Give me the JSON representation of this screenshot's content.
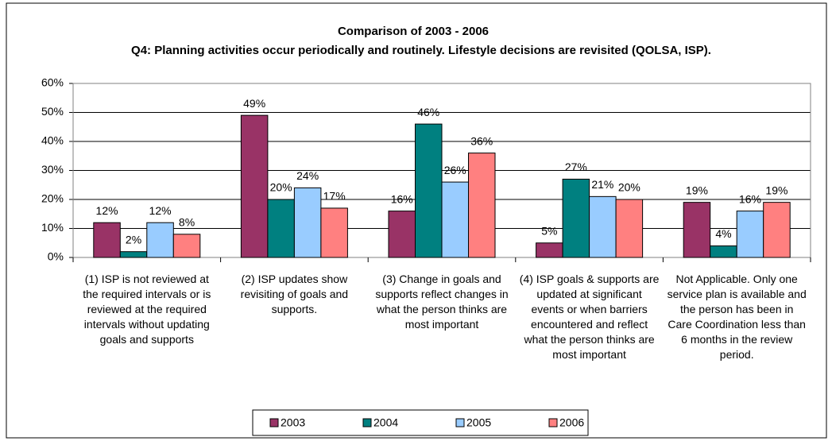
{
  "chart_data": {
    "type": "bar",
    "title": "Comparison of 2003 - 2006",
    "subtitle": "Q4: Planning activities occur periodically and routinely.  Lifestyle decisions are revisited (QOLSA, ISP).",
    "categories": [
      "(1) ISP is not reviewed at the required intervals or is reviewed at the required intervals without updating goals and supports",
      "(2) ISP updates show revisiting of goals and supports.",
      "(3) Change in goals and supports reflect changes in what the person thinks are most important",
      "(4) ISP goals & supports are updated at significant events or when barriers encountered and reflect what the person thinks are most important",
      "Not Applicable.  Only one service plan is available and the person has been in Care Coordination less than 6 months in the review period."
    ],
    "series": [
      {
        "name": "2003",
        "color": "#993366",
        "values": [
          12,
          49,
          16,
          5,
          19
        ],
        "value_labels": [
          "12%",
          "49%",
          "16%",
          "5%",
          "19%"
        ]
      },
      {
        "name": "2004",
        "color": "#008080",
        "values": [
          2,
          20,
          46,
          27,
          4
        ],
        "value_labels": [
          "2%",
          "20%",
          "46%",
          "27%",
          "4%"
        ]
      },
      {
        "name": "2005",
        "color": "#99ccff",
        "values": [
          12,
          24,
          26,
          21,
          16
        ],
        "value_labels": [
          "12%",
          "24%",
          "26%",
          "21%",
          "16%"
        ]
      },
      {
        "name": "2006",
        "color": "#ff8080",
        "values": [
          8,
          17,
          36,
          20,
          19
        ],
        "value_labels": [
          "8%",
          "17%",
          "36%",
          "20%",
          "19%"
        ]
      }
    ],
    "ylim": [
      0,
      60
    ],
    "yticks": [
      {
        "value": 0,
        "label": "0%"
      },
      {
        "value": 10,
        "label": "10%"
      },
      {
        "value": 20,
        "label": "20%"
      },
      {
        "value": 30,
        "label": "30%"
      },
      {
        "value": 40,
        "label": "40%"
      },
      {
        "value": 50,
        "label": "50%"
      },
      {
        "value": 60,
        "label": "60%"
      }
    ],
    "grid": true,
    "legend": "bottom"
  }
}
